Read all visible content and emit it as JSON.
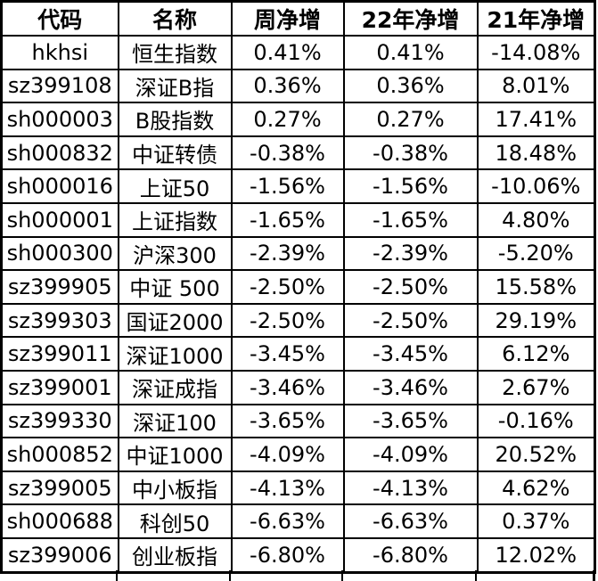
{
  "colors": {
    "border": "#000000",
    "text": "#000000",
    "background": "#ffffff"
  },
  "table": {
    "columns": [
      {
        "key": "code",
        "label": "代码"
      },
      {
        "key": "name",
        "label": "名称"
      },
      {
        "key": "week_net",
        "label": "周净增"
      },
      {
        "key": "y22_net",
        "label": "22年净增"
      },
      {
        "key": "y21_net",
        "label": "21年净增"
      }
    ],
    "rows": [
      {
        "code": "hkhsi",
        "name": "恒生指数",
        "week_net": "0.41%",
        "y22_net": "0.41%",
        "y21_net": "-14.08%"
      },
      {
        "code": "sz399108",
        "name": "深证B指",
        "week_net": "0.36%",
        "y22_net": "0.36%",
        "y21_net": "8.01%"
      },
      {
        "code": "sh000003",
        "name": "B股指数",
        "week_net": "0.27%",
        "y22_net": "0.27%",
        "y21_net": "17.41%"
      },
      {
        "code": "sh000832",
        "name": "中证转债",
        "week_net": "-0.38%",
        "y22_net": "-0.38%",
        "y21_net": "18.48%"
      },
      {
        "code": "sh000016",
        "name": "上证50",
        "week_net": "-1.56%",
        "y22_net": "-1.56%",
        "y21_net": "-10.06%"
      },
      {
        "code": "sh000001",
        "name": "上证指数",
        "week_net": "-1.65%",
        "y22_net": "-1.65%",
        "y21_net": "4.80%"
      },
      {
        "code": "sh000300",
        "name": "沪深300",
        "week_net": "-2.39%",
        "y22_net": "-2.39%",
        "y21_net": "-5.20%"
      },
      {
        "code": "sz399905",
        "name": "中证 500",
        "week_net": "-2.50%",
        "y22_net": "-2.50%",
        "y21_net": "15.58%"
      },
      {
        "code": "sz399303",
        "name": "国证2000",
        "week_net": "-2.50%",
        "y22_net": "-2.50%",
        "y21_net": "29.19%"
      },
      {
        "code": "sz399011",
        "name": "深证1000",
        "week_net": "-3.45%",
        "y22_net": "-3.45%",
        "y21_net": "6.12%"
      },
      {
        "code": "sz399001",
        "name": "深证成指",
        "week_net": "-3.46%",
        "y22_net": "-3.46%",
        "y21_net": "2.67%"
      },
      {
        "code": "sz399330",
        "name": "深证100",
        "week_net": "-3.65%",
        "y22_net": "-3.65%",
        "y21_net": "-0.16%"
      },
      {
        "code": "sh000852",
        "name": "中证1000",
        "week_net": "-4.09%",
        "y22_net": "-4.09%",
        "y21_net": "20.52%"
      },
      {
        "code": "sz399005",
        "name": "中小板指",
        "week_net": "-4.13%",
        "y22_net": "-4.13%",
        "y21_net": "4.62%"
      },
      {
        "code": "sh000688",
        "name": "科创50",
        "week_net": "-6.63%",
        "y22_net": "-6.63%",
        "y21_net": "0.37%"
      },
      {
        "code": "sz399006",
        "name": "创业板指",
        "week_net": "-6.80%",
        "y22_net": "-6.80%",
        "y21_net": "12.02%"
      }
    ]
  }
}
